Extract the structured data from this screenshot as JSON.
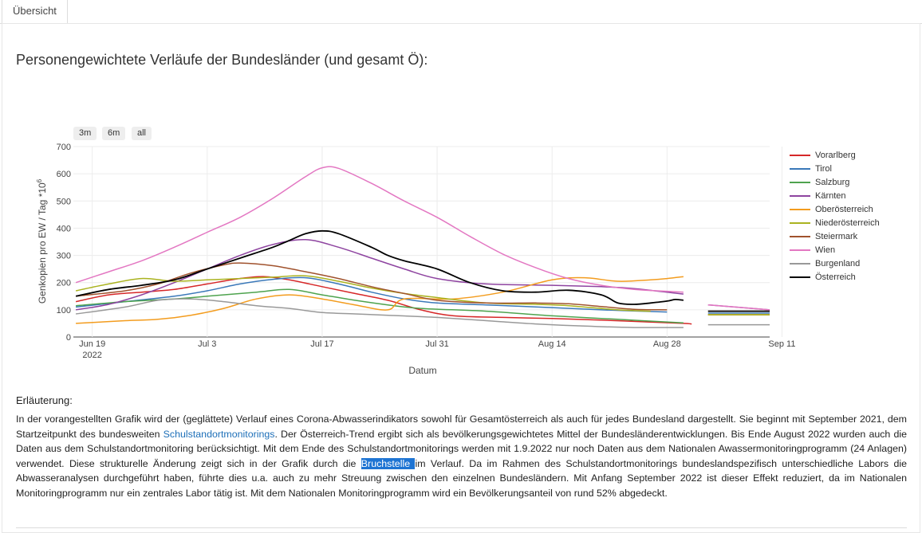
{
  "tab": {
    "label": "Übersicht"
  },
  "page_title": "Personengewichtete Verläufe der Bundesländer (und gesamt Ö):",
  "range_buttons": [
    "3m",
    "6m",
    "all"
  ],
  "explanation": {
    "heading": "Erläuterung:",
    "p1": "In der vorangestellten Grafik wird der (geglättete) Verlauf eines Corona-Abwasserindikators sowohl für Gesamtösterreich als auch für jedes Bundesland dargestellt. Sie beginnt mit September 2021, dem Startzeitpunkt des bundesweiten ",
    "link": "Schulstandortmonitorings",
    "p2": ". Der Österreich-Trend ergibt sich als bevölkerungsgewichtetes Mittel der Bundesländerentwicklungen. Bis Ende August 2022 wurden auch die Daten aus dem Schulstandortmonitoring berücksichtigt. Mit dem Ende des Schulstandortmonitorings werden mit 1.9.2022 nur noch Daten aus dem Nationalen Awassermonitoringprogramm (24 Anlagen) verwendet. Diese strukturelle Änderung zeigt sich in der Grafik durch die ",
    "highlight": "Bruchstelle ",
    "p3": "im Verlauf. Da im Rahmen des Schulstandortmonitorings bundeslandspezifisch unterschiedliche Labors die Abwasseranalysen durchgeführt haben, führte dies u.a. auch zu mehr Streuung zwischen den einzelnen Bundesländern. Mit Anfang September 2022 ist dieser Effekt reduziert, da im Nationalen Monitoringprogramm nur ein zentrales Labor tätig ist. Mit dem Nationalen Monitoringprogramm wird ein Bevölkerungsanteil von rund 52% abgedeckt."
  },
  "chart_data": {
    "type": "line",
    "xlabel": "Datum",
    "ylabel": "Genkopien pro EW / Tag *10",
    "ylabel_exp": "6",
    "ylim": [
      0,
      700
    ],
    "yticks": [
      0,
      100,
      200,
      300,
      400,
      500,
      600,
      700
    ],
    "x_range_days": [
      -2.3,
      82.5
    ],
    "x_note": "x values are days since 2022-06-19",
    "xticks": [
      {
        "day": 0,
        "label": "Jun 19",
        "sub": "2022"
      },
      {
        "day": 14,
        "label": "Jul 3",
        "sub": ""
      },
      {
        "day": 28,
        "label": "Jul 17",
        "sub": ""
      },
      {
        "day": 42,
        "label": "Jul 31",
        "sub": ""
      },
      {
        "day": 56,
        "label": "Aug 14",
        "sub": ""
      },
      {
        "day": 70,
        "label": "Aug 28",
        "sub": ""
      },
      {
        "day": 84,
        "label": "Sep 11",
        "sub": ""
      }
    ],
    "series": [
      {
        "name": "Vorarlberg",
        "color": "#d62728",
        "segments": [
          [
            [
              -2,
              130
            ],
            [
              2,
              155
            ],
            [
              6,
              165
            ],
            [
              10,
              175
            ],
            [
              14,
              195
            ],
            [
              18,
              215
            ],
            [
              21,
              222
            ],
            [
              24,
              210
            ],
            [
              28,
              185
            ],
            [
              32,
              160
            ],
            [
              36,
              135
            ],
            [
              40,
              100
            ],
            [
              44,
              78
            ],
            [
              50,
              72
            ],
            [
              56,
              68
            ],
            [
              62,
              62
            ],
            [
              68,
              55
            ],
            [
              72,
              50
            ],
            [
              73,
              48
            ]
          ],
          [
            [
              75,
              82
            ],
            [
              80,
              82
            ],
            [
              82.5,
              82
            ]
          ]
        ]
      },
      {
        "name": "Tirol",
        "color": "#3a78b9",
        "segments": [
          [
            [
              -2,
              110
            ],
            [
              4,
              130
            ],
            [
              10,
              150
            ],
            [
              14,
              170
            ],
            [
              18,
              195
            ],
            [
              22,
              212
            ],
            [
              26,
              218
            ],
            [
              30,
              195
            ],
            [
              34,
              165
            ],
            [
              38,
              140
            ],
            [
              42,
              125
            ],
            [
              48,
              118
            ],
            [
              56,
              108
            ],
            [
              62,
              100
            ],
            [
              70,
              92
            ]
          ],
          [
            [
              75,
              88
            ],
            [
              80,
              88
            ],
            [
              82.5,
              88
            ]
          ]
        ]
      },
      {
        "name": "Salzburg",
        "color": "#4ea34e",
        "segments": [
          [
            [
              -2,
              115
            ],
            [
              4,
              130
            ],
            [
              10,
              140
            ],
            [
              14,
              150
            ],
            [
              20,
              165
            ],
            [
              24,
              175
            ],
            [
              28,
              155
            ],
            [
              32,
              135
            ],
            [
              36,
              118
            ],
            [
              40,
              105
            ],
            [
              48,
              95
            ],
            [
              56,
              78
            ],
            [
              64,
              65
            ],
            [
              72,
              52
            ]
          ],
          [
            [
              75,
              82
            ],
            [
              80,
              82
            ],
            [
              82.5,
              82
            ]
          ]
        ]
      },
      {
        "name": "Kärnten",
        "color": "#8e44a0",
        "segments": [
          [
            [
              -2,
              100
            ],
            [
              2,
              120
            ],
            [
              6,
              155
            ],
            [
              10,
              200
            ],
            [
              14,
              250
            ],
            [
              18,
              300
            ],
            [
              22,
              340
            ],
            [
              26,
              358
            ],
            [
              30,
              330
            ],
            [
              34,
              290
            ],
            [
              38,
              250
            ],
            [
              42,
              215
            ],
            [
              48,
              195
            ],
            [
              56,
              190
            ],
            [
              62,
              185
            ],
            [
              66,
              178
            ],
            [
              72,
              158
            ]
          ],
          [
            [
              75,
              118
            ],
            [
              82.5,
              100
            ]
          ]
        ]
      },
      {
        "name": "Oberösterreich",
        "color": "#f39c1e",
        "segments": [
          [
            [
              -2,
              50
            ],
            [
              4,
              60
            ],
            [
              8,
              65
            ],
            [
              12,
              80
            ],
            [
              16,
              105
            ],
            [
              20,
              140
            ],
            [
              24,
              155
            ],
            [
              28,
              140
            ],
            [
              32,
              118
            ],
            [
              36,
              100
            ],
            [
              38,
              140
            ],
            [
              44,
              140
            ],
            [
              50,
              165
            ],
            [
              56,
              210
            ],
            [
              60,
              218
            ],
            [
              64,
              205
            ],
            [
              68,
              210
            ],
            [
              70,
              215
            ],
            [
              72,
              222
            ]
          ],
          [
            [
              75,
              82
            ],
            [
              80,
              82
            ],
            [
              82.5,
              82
            ]
          ]
        ]
      },
      {
        "name": "Niederösterreich",
        "color": "#aab320",
        "segments": [
          [
            [
              -2,
              170
            ],
            [
              2,
              195
            ],
            [
              6,
              215
            ],
            [
              10,
              205
            ],
            [
              14,
              210
            ],
            [
              18,
              215
            ],
            [
              22,
              220
            ],
            [
              26,
              225
            ],
            [
              30,
              205
            ],
            [
              34,
              180
            ],
            [
              38,
              160
            ],
            [
              42,
              145
            ],
            [
              48,
              125
            ],
            [
              54,
              120
            ],
            [
              58,
              115
            ],
            [
              64,
              100
            ],
            [
              68,
              95
            ]
          ],
          [
            [
              75,
              82
            ],
            [
              80,
              82
            ],
            [
              82.5,
              82
            ]
          ]
        ]
      },
      {
        "name": "Steiermark",
        "color": "#a0522d",
        "segments": [
          [
            [
              -2,
              150
            ],
            [
              4,
              170
            ],
            [
              8,
              195
            ],
            [
              12,
              235
            ],
            [
              16,
              265
            ],
            [
              18,
              272
            ],
            [
              22,
              262
            ],
            [
              26,
              240
            ],
            [
              30,
              215
            ],
            [
              34,
              185
            ],
            [
              38,
              160
            ],
            [
              42,
              135
            ],
            [
              48,
              125
            ],
            [
              54,
              125
            ],
            [
              58,
              122
            ],
            [
              62,
              112
            ],
            [
              66,
              102
            ],
            [
              70,
              100
            ]
          ],
          [
            [
              75,
              95
            ],
            [
              80,
              95
            ],
            [
              82.5,
              95
            ]
          ]
        ]
      },
      {
        "name": "Wien",
        "color": "#e377c2",
        "segments": [
          [
            [
              -2,
              200
            ],
            [
              2,
              240
            ],
            [
              6,
              280
            ],
            [
              10,
              330
            ],
            [
              14,
              385
            ],
            [
              18,
              440
            ],
            [
              22,
              510
            ],
            [
              26,
              590
            ],
            [
              28,
              622
            ],
            [
              30,
              620
            ],
            [
              34,
              565
            ],
            [
              38,
              500
            ],
            [
              42,
              440
            ],
            [
              46,
              370
            ],
            [
              50,
              305
            ],
            [
              54,
              255
            ],
            [
              58,
              215
            ],
            [
              62,
              190
            ],
            [
              66,
              175
            ],
            [
              70,
              168
            ],
            [
              72,
              165
            ]
          ],
          [
            [
              75,
              118
            ],
            [
              82.5,
              100
            ]
          ]
        ]
      },
      {
        "name": "Burgenland",
        "color": "#999999",
        "segments": [
          [
            [
              -2,
              85
            ],
            [
              4,
              110
            ],
            [
              8,
              135
            ],
            [
              12,
              140
            ],
            [
              16,
              130
            ],
            [
              20,
              115
            ],
            [
              24,
              105
            ],
            [
              28,
              90
            ],
            [
              32,
              85
            ],
            [
              36,
              80
            ],
            [
              42,
              72
            ],
            [
              48,
              60
            ],
            [
              54,
              48
            ],
            [
              60,
              40
            ],
            [
              66,
              35
            ],
            [
              72,
              35
            ]
          ],
          [
            [
              75,
              45
            ],
            [
              80,
              45
            ],
            [
              82.5,
              45
            ]
          ]
        ]
      },
      {
        "name": "Österreich",
        "color": "#000000",
        "segments": [
          [
            [
              -2,
              150
            ],
            [
              2,
              175
            ],
            [
              6,
              190
            ],
            [
              10,
              210
            ],
            [
              14,
              250
            ],
            [
              18,
              290
            ],
            [
              22,
              330
            ],
            [
              24,
              355
            ],
            [
              26,
              380
            ],
            [
              28,
              390
            ],
            [
              30,
              380
            ],
            [
              34,
              330
            ],
            [
              36,
              300
            ],
            [
              38,
              280
            ],
            [
              42,
              250
            ],
            [
              46,
              200
            ],
            [
              50,
              170
            ],
            [
              54,
              165
            ],
            [
              58,
              172
            ],
            [
              62,
              155
            ],
            [
              64,
              125
            ],
            [
              66,
              120
            ],
            [
              68,
              125
            ],
            [
              70,
              132
            ],
            [
              71,
              138
            ],
            [
              72,
              135
            ]
          ],
          [
            [
              75,
              95
            ],
            [
              80,
              95
            ],
            [
              82.5,
              95
            ]
          ]
        ]
      }
    ]
  }
}
